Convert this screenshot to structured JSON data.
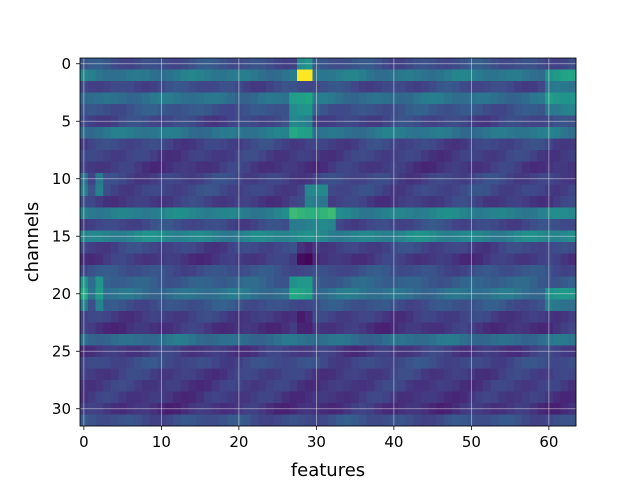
{
  "chart_data": {
    "type": "heatmap",
    "title": "",
    "xlabel": "features",
    "ylabel": "channels",
    "n_rows": 32,
    "n_cols": 64,
    "xlim": [
      -0.5,
      63.5
    ],
    "ylim": [
      31.5,
      -0.5
    ],
    "x_ticks": [
      0,
      10,
      20,
      30,
      40,
      50,
      60
    ],
    "y_ticks": [
      0,
      5,
      10,
      15,
      20,
      25,
      30
    ],
    "grid": true,
    "colormap": "viridis",
    "value_range": [
      0,
      1
    ],
    "row_levels": [
      0.24,
      0.4,
      0.22,
      0.37,
      0.26,
      0.21,
      0.39,
      0.2,
      0.18,
      0.16,
      0.2,
      0.21,
      0.18,
      0.44,
      0.22,
      0.45,
      0.2,
      0.16,
      0.24,
      0.3,
      0.37,
      0.25,
      0.18,
      0.15,
      0.36,
      0.17,
      0.22,
      0.18,
      0.17,
      0.16,
      0.14,
      0.24
    ],
    "column_effects": [
      {
        "cols": [
          0,
          2
        ],
        "rows": [
          10,
          11,
          19,
          20,
          21
        ],
        "delta": 0.18
      },
      {
        "cols": [
          28,
          29
        ],
        "rows": [
          0,
          1
        ],
        "delta": 0.25
      },
      {
        "cols": [
          28,
          29
        ],
        "rows": [
          1
        ],
        "delta": 0.55
      },
      {
        "cols": [
          27,
          28,
          29
        ],
        "rows": [
          3,
          4,
          5,
          6
        ],
        "delta": 0.2
      },
      {
        "cols": [
          29,
          30,
          31
        ],
        "rows": [
          11,
          12
        ],
        "delta": 0.22
      },
      {
        "cols": [
          27,
          28,
          29,
          30,
          31,
          32
        ],
        "rows": [
          13,
          14
        ],
        "delta": 0.2
      },
      {
        "cols": [
          27,
          28,
          29
        ],
        "rows": [
          19,
          20
        ],
        "delta": 0.22
      },
      {
        "cols": [
          28,
          29
        ],
        "rows": [
          16,
          17,
          22,
          23
        ],
        "delta": -0.1
      },
      {
        "cols": [
          60,
          61,
          62,
          63
        ],
        "rows": [
          1,
          2,
          3,
          4,
          20,
          21
        ],
        "delta": 0.15
      }
    ]
  }
}
